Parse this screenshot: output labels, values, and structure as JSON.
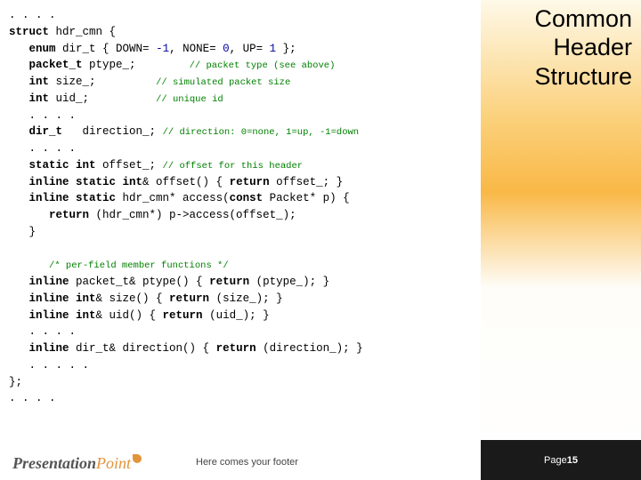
{
  "slide": {
    "title": "Common Header Structure",
    "footer_text": "Here comes your footer",
    "page_label": "Page ",
    "page_number": "15",
    "logo_part1": "Presentation",
    "logo_part2": "Point"
  },
  "code": {
    "colors": {
      "keyword": "#000000",
      "comment": "#008000",
      "number": "#0000a0",
      "text": "#000000"
    },
    "font_family": "Courier New",
    "font_size_pt": 9,
    "lines": [
      {
        "indent": 0,
        "t": ". . . ."
      },
      {
        "indent": 0,
        "seg": [
          {
            "c": "kw",
            "t": "struct"
          },
          {
            "t": " hdr_cmn {"
          }
        ]
      },
      {
        "indent": 1,
        "seg": [
          {
            "c": "kw",
            "t": "enum"
          },
          {
            "t": " dir_t { DOWN= "
          },
          {
            "c": "num",
            "t": "-1"
          },
          {
            "t": ", NONE= "
          },
          {
            "c": "num",
            "t": "0"
          },
          {
            "t": ", UP= "
          },
          {
            "c": "num",
            "t": "1"
          },
          {
            "t": " };"
          }
        ]
      },
      {
        "indent": 1,
        "seg": [
          {
            "c": "kw",
            "t": "packet_t"
          },
          {
            "t": " ptype_;        "
          },
          {
            "c": "comment",
            "t": "// packet type (see above)"
          }
        ]
      },
      {
        "indent": 1,
        "seg": [
          {
            "c": "kw",
            "t": "int"
          },
          {
            "t": " size_;         "
          },
          {
            "c": "comment",
            "t": "// simulated packet size"
          }
        ]
      },
      {
        "indent": 1,
        "seg": [
          {
            "c": "kw",
            "t": "int"
          },
          {
            "t": " uid_;          "
          },
          {
            "c": "comment",
            "t": "// unique id"
          }
        ]
      },
      {
        "indent": 1,
        "t": ". . . ."
      },
      {
        "indent": 1,
        "seg": [
          {
            "c": "kw",
            "t": "dir_t"
          },
          {
            "t": "   direction_; "
          },
          {
            "c": "comment",
            "t": "// direction: 0=none, 1=up, -1=down"
          }
        ]
      },
      {
        "indent": 1,
        "t": ". . . ."
      },
      {
        "indent": 1,
        "seg": [
          {
            "c": "kw",
            "t": "static int"
          },
          {
            "t": " offset_; "
          },
          {
            "c": "comment",
            "t": "// offset for this header"
          }
        ]
      },
      {
        "indent": 1,
        "seg": [
          {
            "c": "kw",
            "t": "inline static int"
          },
          {
            "t": "& offset() { "
          },
          {
            "c": "kw",
            "t": "return"
          },
          {
            "t": " offset_; }"
          }
        ]
      },
      {
        "indent": 1,
        "seg": [
          {
            "c": "kw",
            "t": "inline static"
          },
          {
            "t": " hdr_cmn* access("
          },
          {
            "c": "kw",
            "t": "const"
          },
          {
            "t": " Packet* p) {"
          }
        ]
      },
      {
        "indent": 2,
        "seg": [
          {
            "c": "kw",
            "t": "return"
          },
          {
            "t": " (hdr_cmn*) p->access(offset_);"
          }
        ]
      },
      {
        "indent": 1,
        "t": "}"
      },
      {
        "indent": 0,
        "t": " "
      },
      {
        "indent": 2,
        "seg": [
          {
            "c": "comment",
            "t": "/* per-field member functions */"
          }
        ]
      },
      {
        "indent": 1,
        "seg": [
          {
            "c": "kw",
            "t": "inline"
          },
          {
            "t": " packet_t& ptype() { "
          },
          {
            "c": "kw",
            "t": "return"
          },
          {
            "t": " (ptype_); }"
          }
        ]
      },
      {
        "indent": 1,
        "seg": [
          {
            "c": "kw",
            "t": "inline int"
          },
          {
            "t": "& size() { "
          },
          {
            "c": "kw",
            "t": "return"
          },
          {
            "t": " (size_); }"
          }
        ]
      },
      {
        "indent": 1,
        "seg": [
          {
            "c": "kw",
            "t": "inline int"
          },
          {
            "t": "& uid() { "
          },
          {
            "c": "kw",
            "t": "return"
          },
          {
            "t": " (uid_); }"
          }
        ]
      },
      {
        "indent": 1,
        "t": ". . . ."
      },
      {
        "indent": 1,
        "seg": [
          {
            "c": "kw",
            "t": "inline"
          },
          {
            "t": " dir_t& direction() { "
          },
          {
            "c": "kw",
            "t": "return"
          },
          {
            "t": " (direction_); }"
          }
        ]
      },
      {
        "indent": 1,
        "t": ". . . . ."
      },
      {
        "indent": 0,
        "t": "};"
      },
      {
        "indent": 0,
        "t": ". . . ."
      }
    ]
  },
  "sidebar": {
    "gradient_stops": [
      "#fef9e8",
      "#fbd07a",
      "#f9b847",
      "#fefdf9",
      "#ffffff"
    ]
  }
}
